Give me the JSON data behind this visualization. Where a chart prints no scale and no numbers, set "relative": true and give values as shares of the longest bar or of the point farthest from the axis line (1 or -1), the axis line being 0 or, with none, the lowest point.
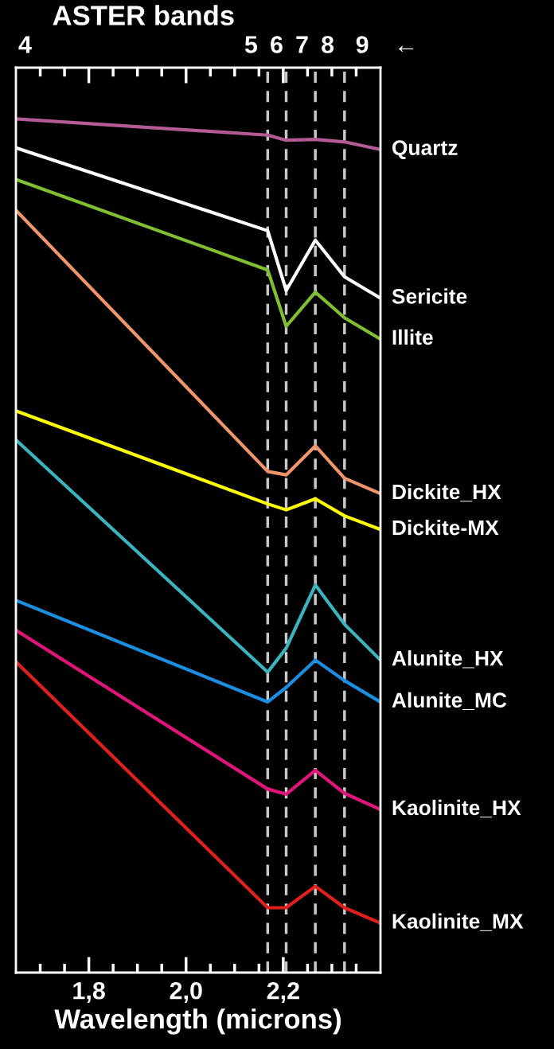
{
  "chart_data": {
    "type": "line",
    "relative": true,
    "x2label": "ASTER bands",
    "xlabel": "Wavelength (microns)",
    "x": [
      1.65,
      2.168,
      2.206,
      2.266,
      2.326,
      2.4
    ],
    "xlim": [
      1.65,
      2.4
    ],
    "xticks": [
      {
        "value": 1.7,
        "label": null
      },
      {
        "value": 1.75,
        "label": null
      },
      {
        "value": 1.8,
        "label": "1,8"
      },
      {
        "value": 1.85,
        "label": null
      },
      {
        "value": 1.9,
        "label": null
      },
      {
        "value": 1.95,
        "label": null
      },
      {
        "value": 2.0,
        "label": "2,0"
      },
      {
        "value": 2.05,
        "label": null
      },
      {
        "value": 2.1,
        "label": null
      },
      {
        "value": 2.15,
        "label": null
      },
      {
        "value": 2.2,
        "label": "2,2"
      },
      {
        "value": 2.25,
        "label": null
      },
      {
        "value": 2.3,
        "label": null
      },
      {
        "value": 2.35,
        "label": null
      }
    ],
    "ref_lines": [
      {
        "axis": "x",
        "value": 2.168,
        "color": "#c8c8c8",
        "line_style": "dashed"
      },
      {
        "axis": "x",
        "value": 2.206,
        "color": "#c8c8c8",
        "line_style": "dashed"
      },
      {
        "axis": "x",
        "value": 2.266,
        "color": "#c8c8c8",
        "line_style": "dashed"
      },
      {
        "axis": "x",
        "value": 2.326,
        "color": "#c8c8c8",
        "line_style": "dashed"
      }
    ],
    "annotations": [
      "4",
      "5",
      "6",
      "7",
      "8",
      "9",
      "←"
    ],
    "legend": false,
    "grid": false,
    "marker": "none",
    "line_style": "solid",
    "series": [
      {
        "name": "Quartz",
        "color": "#b45a96",
        "values": [
          1.0,
          0.981,
          0.975,
          0.976,
          0.973,
          0.964
        ]
      },
      {
        "name": "Sericite",
        "color": "#ffffff",
        "values": [
          0.966,
          0.869,
          0.799,
          0.858,
          0.815,
          0.79
        ]
      },
      {
        "name": "Illite",
        "color": "#7fbf30",
        "values": [
          0.929,
          0.823,
          0.757,
          0.797,
          0.767,
          0.742
        ]
      },
      {
        "name": "Dickite_HX",
        "color": "#f0956a",
        "values": [
          0.893,
          0.587,
          0.583,
          0.617,
          0.579,
          0.561
        ]
      },
      {
        "name": "Dickite-MX",
        "color": "#ffff00",
        "values": [
          0.658,
          0.549,
          0.542,
          0.555,
          0.535,
          0.519
        ]
      },
      {
        "name": "Alunite_HX",
        "color": "#3ab5c0",
        "values": [
          0.624,
          0.352,
          0.38,
          0.454,
          0.408,
          0.366
        ]
      },
      {
        "name": "Alunite_MC",
        "color": "#1a8ee0",
        "values": [
          0.436,
          0.317,
          0.334,
          0.366,
          0.342,
          0.317
        ]
      },
      {
        "name": "Kaolinite_HX",
        "color": "#e0147a",
        "values": [
          0.401,
          0.215,
          0.209,
          0.237,
          0.21,
          0.191
        ]
      },
      {
        "name": "Kaolinite_MX",
        "color": "#e0201a",
        "values": [
          0.364,
          0.076,
          0.076,
          0.101,
          0.076,
          0.058
        ]
      }
    ]
  }
}
